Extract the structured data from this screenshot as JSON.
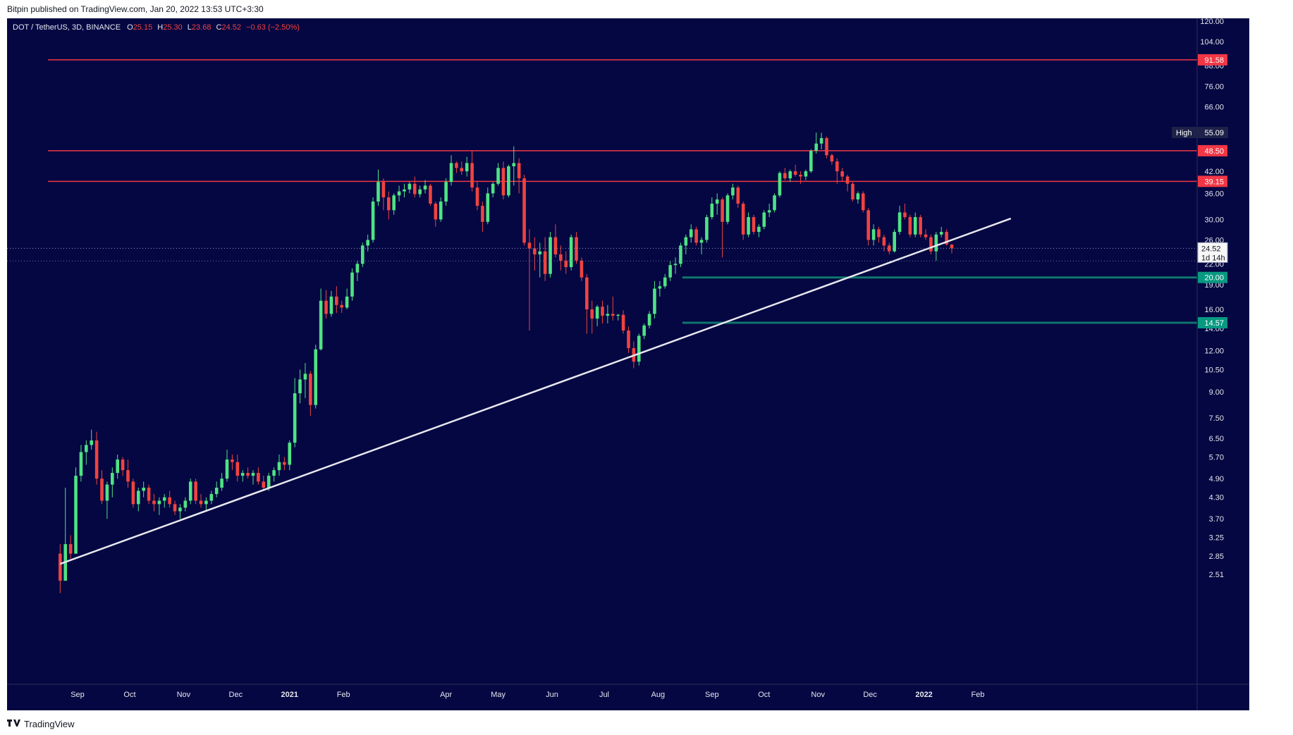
{
  "header": {
    "published": "Bitpin published on TradingView.com, Jan 20, 2022 13:53 UTC+3:30"
  },
  "footer": {
    "brand": "TradingView",
    "logo_icon": "tradingview-logo-icon"
  },
  "colors": {
    "background": "#040742",
    "bull": "#4fe383",
    "bear": "#f0433f",
    "resistance_line": "#f23645",
    "support_line": "#0f766e",
    "trendline": "#e8e8ee",
    "axis_text": "#e6e6ee",
    "price_tag": "#f7f7f7"
  },
  "chart_data": {
    "type": "candlestick",
    "symbol_info": {
      "label": "DOT / TetherUS, 3D, BINANCE",
      "o_label": "O",
      "o": "25.15",
      "h_label": "H",
      "h": "25.30",
      "l_label": "L",
      "l": "23.68",
      "c_label": "C",
      "c": "24.52",
      "change": "−0.63 (−2.50%)"
    },
    "scale": "log",
    "y_ticks": [
      "120.00",
      "104.00",
      "88.00",
      "76.00",
      "66.00",
      "55.00",
      "48.00",
      "42.00",
      "36.00",
      "30.00",
      "26.00",
      "22.00",
      "19.00",
      "16.00",
      "14.00",
      "12.00",
      "10.50",
      "9.00",
      "7.50",
      "6.50",
      "5.70",
      "4.90",
      "4.30",
      "3.70",
      "3.25",
      "2.85",
      "2.51"
    ],
    "x_ticks": [
      {
        "label": "Sep",
        "date": "2020-09-01",
        "bold": false
      },
      {
        "label": "Oct",
        "date": "2020-10-01",
        "bold": false
      },
      {
        "label": "Nov",
        "date": "2020-11-01",
        "bold": false
      },
      {
        "label": "Dec",
        "date": "2020-12-01",
        "bold": false
      },
      {
        "label": "2021",
        "date": "2021-01-01",
        "bold": true
      },
      {
        "label": "Feb",
        "date": "2021-02-01",
        "bold": false
      },
      {
        "label": "Apr",
        "date": "2021-04-01",
        "bold": false
      },
      {
        "label": "May",
        "date": "2021-05-01",
        "bold": false
      },
      {
        "label": "Jun",
        "date": "2021-06-01",
        "bold": false
      },
      {
        "label": "Jul",
        "date": "2021-07-01",
        "bold": false
      },
      {
        "label": "Aug",
        "date": "2021-08-01",
        "bold": false
      },
      {
        "label": "Sep",
        "date": "2021-09-01",
        "bold": false
      },
      {
        "label": "Oct",
        "date": "2021-10-01",
        "bold": false
      },
      {
        "label": "Nov",
        "date": "2021-11-01",
        "bold": false
      },
      {
        "label": "Dec",
        "date": "2021-12-01",
        "bold": false
      },
      {
        "label": "2022",
        "date": "2022-01-01",
        "bold": true
      },
      {
        "label": "Feb",
        "date": "2022-02-01",
        "bold": false
      }
    ],
    "horizontal_levels": [
      {
        "price": 91.58,
        "label": "91.58",
        "color": "#f23645",
        "start_date": "2020-08-15"
      },
      {
        "price": 48.5,
        "label": "48.50",
        "color": "#f23645",
        "start_date": "2020-08-15"
      },
      {
        "price": 39.15,
        "label": "39.15",
        "color": "#f23645",
        "start_date": "2020-08-15"
      },
      {
        "price": 20.0,
        "label": "20.00",
        "color": "#089981",
        "start_date": "2021-08-15"
      },
      {
        "price": 14.57,
        "label": "14.57",
        "color": "#089981",
        "start_date": "2021-08-15"
      }
    ],
    "high_marker": {
      "label": "High",
      "price": 55.09,
      "value": "55.09"
    },
    "last_price": {
      "price": 24.52,
      "label": "24.52",
      "countdown": "1d 14h"
    },
    "trendline": [
      {
        "date": "2020-08-22",
        "price": 2.7
      },
      {
        "date": "2022-02-20",
        "price": 30.2
      }
    ],
    "candles": [
      [
        "2020-08-22",
        2.9,
        3.1,
        2.2,
        2.4
      ],
      [
        "2020-08-25",
        2.4,
        4.6,
        2.4,
        3.1
      ],
      [
        "2020-08-28",
        3.1,
        3.3,
        2.8,
        2.9
      ],
      [
        "2020-08-31",
        2.9,
        5.3,
        2.9,
        5.0
      ],
      [
        "2020-09-03",
        5.0,
        6.2,
        4.8,
        5.9
      ],
      [
        "2020-09-06",
        5.9,
        6.4,
        5.4,
        6.2
      ],
      [
        "2020-09-09",
        6.2,
        6.9,
        6.0,
        6.4
      ],
      [
        "2020-09-12",
        6.4,
        6.8,
        4.7,
        4.9
      ],
      [
        "2020-09-15",
        4.9,
        5.2,
        4.1,
        4.2
      ],
      [
        "2020-09-18",
        4.2,
        4.8,
        3.7,
        4.7
      ],
      [
        "2020-09-21",
        4.7,
        5.3,
        4.3,
        5.1
      ],
      [
        "2020-09-24",
        5.1,
        5.8,
        4.9,
        5.6
      ],
      [
        "2020-09-27",
        5.6,
        5.7,
        5.0,
        5.2
      ],
      [
        "2020-09-30",
        5.2,
        5.6,
        4.6,
        4.8
      ],
      [
        "2020-10-03",
        4.8,
        4.9,
        4.0,
        4.1
      ],
      [
        "2020-10-06",
        4.1,
        4.6,
        3.9,
        4.5
      ],
      [
        "2020-10-09",
        4.5,
        4.8,
        4.3,
        4.6
      ],
      [
        "2020-10-12",
        4.6,
        4.7,
        4.1,
        4.2
      ],
      [
        "2020-10-15",
        4.2,
        4.4,
        3.9,
        4.1
      ],
      [
        "2020-10-18",
        4.1,
        4.3,
        3.8,
        4.2
      ],
      [
        "2020-10-21",
        4.2,
        4.4,
        4.0,
        4.3
      ],
      [
        "2020-10-24",
        4.3,
        4.5,
        4.0,
        4.1
      ],
      [
        "2020-10-27",
        4.1,
        4.2,
        3.8,
        3.9
      ],
      [
        "2020-10-30",
        3.9,
        4.1,
        3.7,
        4.0
      ],
      [
        "2020-11-02",
        4.0,
        4.3,
        3.9,
        4.2
      ],
      [
        "2020-11-05",
        4.2,
        4.9,
        4.1,
        4.8
      ],
      [
        "2020-11-08",
        4.8,
        4.9,
        4.1,
        4.2
      ],
      [
        "2020-11-11",
        4.2,
        4.4,
        4.0,
        4.1
      ],
      [
        "2020-11-14",
        4.1,
        4.3,
        3.9,
        4.2
      ],
      [
        "2020-11-17",
        4.2,
        4.5,
        4.1,
        4.4
      ],
      [
        "2020-11-20",
        4.4,
        4.8,
        4.3,
        4.6
      ],
      [
        "2020-11-23",
        4.6,
        5.1,
        4.5,
        4.9
      ],
      [
        "2020-11-26",
        4.9,
        6.0,
        4.8,
        5.6
      ],
      [
        "2020-11-29",
        5.6,
        5.8,
        5.2,
        5.5
      ],
      [
        "2020-12-02",
        5.5,
        5.8,
        4.8,
        5.0
      ],
      [
        "2020-12-05",
        5.0,
        5.2,
        4.8,
        5.1
      ],
      [
        "2020-12-08",
        5.1,
        5.3,
        4.9,
        5.0
      ],
      [
        "2020-12-11",
        5.0,
        5.2,
        4.7,
        5.1
      ],
      [
        "2020-12-14",
        5.1,
        5.3,
        4.7,
        4.8
      ],
      [
        "2020-12-17",
        4.8,
        5.0,
        4.5,
        4.6
      ],
      [
        "2020-12-20",
        4.6,
        5.1,
        4.5,
        5.0
      ],
      [
        "2020-12-23",
        5.0,
        5.3,
        4.8,
        5.2
      ],
      [
        "2020-12-26",
        5.2,
        5.8,
        5.0,
        5.5
      ],
      [
        "2020-12-29",
        5.5,
        5.7,
        5.2,
        5.4
      ],
      [
        "2021-01-01",
        5.4,
        6.4,
        5.2,
        6.3
      ],
      [
        "2021-01-04",
        6.3,
        9.9,
        6.1,
        8.9
      ],
      [
        "2021-01-07",
        8.9,
        10.5,
        8.3,
        9.8
      ],
      [
        "2021-01-10",
        9.8,
        11.0,
        8.6,
        10.2
      ],
      [
        "2021-01-13",
        10.2,
        10.4,
        7.6,
        8.2
      ],
      [
        "2021-01-16",
        8.2,
        12.5,
        8.0,
        12.1
      ],
      [
        "2021-01-19",
        12.1,
        18.5,
        12.0,
        17.0
      ],
      [
        "2021-01-22",
        17.0,
        18.3,
        15.0,
        15.5
      ],
      [
        "2021-01-25",
        15.5,
        18.2,
        15.2,
        17.5
      ],
      [
        "2021-01-28",
        17.5,
        18.8,
        15.6,
        16.5
      ],
      [
        "2021-01-31",
        16.5,
        17.0,
        15.6,
        16.2
      ],
      [
        "2021-02-03",
        16.2,
        18.5,
        16.0,
        17.5
      ],
      [
        "2021-02-06",
        17.5,
        21.3,
        17.0,
        20.7
      ],
      [
        "2021-02-09",
        20.7,
        22.5,
        19.5,
        22.0
      ],
      [
        "2021-02-12",
        22.0,
        25.5,
        21.5,
        25.0
      ],
      [
        "2021-02-15",
        25.0,
        27.0,
        24.0,
        26.0
      ],
      [
        "2021-02-18",
        26.0,
        35.0,
        25.5,
        34.0
      ],
      [
        "2021-02-21",
        34.0,
        42.5,
        33.0,
        39.0
      ],
      [
        "2021-02-24",
        39.0,
        40.0,
        32.0,
        35.0
      ],
      [
        "2021-02-27",
        35.0,
        36.5,
        30.0,
        32.0
      ],
      [
        "2021-03-02",
        32.0,
        36.0,
        31.0,
        35.5
      ],
      [
        "2021-03-05",
        35.5,
        38.0,
        34.0,
        36.5
      ],
      [
        "2021-03-08",
        36.5,
        38.5,
        35.0,
        37.0
      ],
      [
        "2021-03-11",
        37.0,
        39.0,
        36.0,
        38.5
      ],
      [
        "2021-03-14",
        38.5,
        40.5,
        35.0,
        35.8
      ],
      [
        "2021-03-17",
        35.8,
        38.0,
        35.0,
        37.0
      ],
      [
        "2021-03-20",
        37.0,
        39.5,
        36.0,
        38.0
      ],
      [
        "2021-03-23",
        38.0,
        38.5,
        33.0,
        33.5
      ],
      [
        "2021-03-26",
        33.5,
        34.0,
        28.5,
        30.0
      ],
      [
        "2021-03-29",
        30.0,
        35.0,
        29.5,
        34.0
      ],
      [
        "2021-04-01",
        34.0,
        40.0,
        33.0,
        39.0
      ],
      [
        "2021-04-04",
        39.0,
        47.0,
        38.0,
        44.5
      ],
      [
        "2021-04-07",
        44.5,
        45.0,
        41.5,
        43.0
      ],
      [
        "2021-04-10",
        43.0,
        45.0,
        41.0,
        42.0
      ],
      [
        "2021-04-13",
        42.0,
        46.5,
        40.5,
        44.5
      ],
      [
        "2021-04-16",
        44.5,
        48.5,
        36.5,
        37.5
      ],
      [
        "2021-04-19",
        37.5,
        39.0,
        32.0,
        33.0
      ],
      [
        "2021-04-22",
        33.0,
        34.0,
        27.5,
        29.5
      ],
      [
        "2021-04-25",
        29.5,
        37.5,
        29.0,
        36.0
      ],
      [
        "2021-04-28",
        36.0,
        39.0,
        35.0,
        38.5
      ],
      [
        "2021-05-01",
        38.5,
        44.5,
        38.0,
        43.0
      ],
      [
        "2021-05-04",
        43.0,
        45.0,
        34.5,
        35.5
      ],
      [
        "2021-05-07",
        35.5,
        44.0,
        35.0,
        43.5
      ],
      [
        "2021-05-10",
        43.5,
        50.0,
        38.0,
        44.5
      ],
      [
        "2021-05-13",
        44.5,
        46.0,
        36.0,
        40.0
      ],
      [
        "2021-05-16",
        40.0,
        41.0,
        25.0,
        25.5
      ],
      [
        "2021-05-19",
        25.5,
        28.0,
        13.8,
        24.5
      ],
      [
        "2021-05-22",
        24.5,
        26.5,
        21.0,
        23.5
      ],
      [
        "2021-05-25",
        23.5,
        25.5,
        20.0,
        24.0
      ],
      [
        "2021-05-28",
        24.0,
        26.5,
        19.5,
        20.5
      ],
      [
        "2021-05-31",
        20.5,
        27.5,
        20.0,
        26.5
      ],
      [
        "2021-06-03",
        26.5,
        29.0,
        23.0,
        23.5
      ],
      [
        "2021-06-06",
        23.5,
        25.0,
        21.0,
        22.5
      ],
      [
        "2021-06-09",
        22.5,
        24.0,
        20.5,
        21.5
      ],
      [
        "2021-06-12",
        21.5,
        27.0,
        21.0,
        26.5
      ],
      [
        "2021-06-15",
        26.5,
        27.5,
        22.0,
        22.5
      ],
      [
        "2021-06-18",
        22.5,
        23.0,
        19.5,
        20.0
      ],
      [
        "2021-06-21",
        20.0,
        20.5,
        13.5,
        16.0
      ],
      [
        "2021-06-24",
        16.0,
        17.0,
        13.5,
        15.0
      ],
      [
        "2021-06-27",
        15.0,
        16.5,
        14.2,
        16.3
      ],
      [
        "2021-06-30",
        16.3,
        17.0,
        14.5,
        15.3
      ],
      [
        "2021-07-03",
        15.3,
        16.5,
        14.5,
        15.5
      ],
      [
        "2021-07-06",
        15.5,
        17.5,
        14.8,
        15.3
      ],
      [
        "2021-07-09",
        15.3,
        15.5,
        14.8,
        15.4
      ],
      [
        "2021-07-12",
        15.4,
        15.9,
        13.5,
        13.8
      ],
      [
        "2021-07-15",
        13.8,
        14.2,
        11.8,
        12.2
      ],
      [
        "2021-07-18",
        12.2,
        12.8,
        10.6,
        11.1
      ],
      [
        "2021-07-21",
        11.1,
        13.5,
        10.8,
        13.3
      ],
      [
        "2021-07-24",
        13.3,
        14.5,
        13.0,
        14.3
      ],
      [
        "2021-07-27",
        14.3,
        15.8,
        14.0,
        15.5
      ],
      [
        "2021-07-30",
        15.5,
        19.5,
        15.0,
        18.5
      ],
      [
        "2021-08-02",
        18.5,
        19.5,
        17.5,
        18.8
      ],
      [
        "2021-08-05",
        18.8,
        20.5,
        18.5,
        20.0
      ],
      [
        "2021-08-08",
        20.0,
        22.5,
        19.5,
        21.8
      ],
      [
        "2021-08-11",
        21.8,
        23.0,
        20.5,
        22.0
      ],
      [
        "2021-08-14",
        22.0,
        25.5,
        21.5,
        25.0
      ],
      [
        "2021-08-17",
        25.0,
        27.0,
        23.5,
        26.5
      ],
      [
        "2021-08-20",
        26.5,
        29.0,
        25.5,
        28.0
      ],
      [
        "2021-08-23",
        28.0,
        28.5,
        25.0,
        25.5
      ],
      [
        "2021-08-26",
        25.5,
        26.5,
        23.5,
        26.0
      ],
      [
        "2021-08-29",
        26.0,
        31.0,
        25.5,
        30.5
      ],
      [
        "2021-09-01",
        30.5,
        35.0,
        30.0,
        33.5
      ],
      [
        "2021-09-04",
        33.5,
        36.0,
        31.0,
        34.5
      ],
      [
        "2021-09-07",
        34.5,
        35.0,
        23.0,
        29.5
      ],
      [
        "2021-09-10",
        29.5,
        36.0,
        29.0,
        35.5
      ],
      [
        "2021-09-13",
        35.5,
        38.5,
        34.5,
        37.5
      ],
      [
        "2021-09-16",
        37.5,
        38.0,
        32.5,
        33.5
      ],
      [
        "2021-09-19",
        33.5,
        34.0,
        26.0,
        27.0
      ],
      [
        "2021-09-22",
        27.0,
        31.5,
        26.5,
        30.5
      ],
      [
        "2021-09-25",
        30.5,
        31.0,
        27.0,
        27.5
      ],
      [
        "2021-09-28",
        27.5,
        29.0,
        26.5,
        28.5
      ],
      [
        "2021-10-01",
        28.5,
        32.0,
        28.0,
        31.5
      ],
      [
        "2021-10-04",
        31.5,
        33.5,
        30.5,
        32.0
      ],
      [
        "2021-10-07",
        32.0,
        36.0,
        31.5,
        35.5
      ],
      [
        "2021-10-10",
        35.5,
        42.0,
        35.0,
        41.5
      ],
      [
        "2021-10-13",
        41.5,
        43.0,
        39.5,
        40.0
      ],
      [
        "2021-10-16",
        40.0,
        42.5,
        39.0,
        42.0
      ],
      [
        "2021-10-19",
        42.0,
        44.0,
        40.5,
        41.0
      ],
      [
        "2021-10-22",
        41.0,
        42.0,
        38.5,
        40.5
      ],
      [
        "2021-10-25",
        40.5,
        42.5,
        39.5,
        42.0
      ],
      [
        "2021-10-28",
        42.0,
        49.0,
        41.5,
        48.5
      ],
      [
        "2021-10-31",
        48.5,
        55.09,
        47.5,
        51.0
      ],
      [
        "2021-11-03",
        51.0,
        55.0,
        49.0,
        53.0
      ],
      [
        "2021-11-06",
        53.0,
        53.5,
        46.0,
        47.0
      ],
      [
        "2021-11-09",
        47.0,
        47.5,
        44.0,
        45.0
      ],
      [
        "2021-11-12",
        45.0,
        46.0,
        38.5,
        42.0
      ],
      [
        "2021-11-15",
        42.0,
        43.0,
        39.0,
        40.5
      ],
      [
        "2021-11-18",
        40.5,
        41.0,
        36.5,
        38.5
      ],
      [
        "2021-11-21",
        38.5,
        39.0,
        34.0,
        34.5
      ],
      [
        "2021-11-24",
        34.5,
        36.5,
        33.5,
        36.0
      ],
      [
        "2021-11-27",
        36.0,
        36.5,
        31.5,
        32.0
      ],
      [
        "2021-11-30",
        32.0,
        32.5,
        25.0,
        26.0
      ],
      [
        "2021-12-03",
        26.0,
        29.0,
        25.0,
        28.0
      ],
      [
        "2021-12-06",
        28.0,
        28.5,
        25.5,
        26.5
      ],
      [
        "2021-12-09",
        26.5,
        27.0,
        24.0,
        25.0
      ],
      [
        "2021-12-12",
        25.0,
        25.5,
        23.5,
        24.0
      ],
      [
        "2021-12-15",
        24.0,
        28.0,
        23.8,
        27.5
      ],
      [
        "2021-12-18",
        27.5,
        33.0,
        27.0,
        31.5
      ],
      [
        "2021-12-21",
        31.5,
        33.5,
        30.0,
        30.5
      ],
      [
        "2021-12-24",
        30.5,
        31.0,
        26.5,
        27.0
      ],
      [
        "2021-12-27",
        27.0,
        31.5,
        26.5,
        30.5
      ],
      [
        "2021-12-30",
        30.5,
        31.0,
        26.5,
        27.0
      ],
      [
        "2022-01-02",
        27.0,
        28.0,
        26.0,
        26.5
      ],
      [
        "2022-01-05",
        26.5,
        27.0,
        23.5,
        24.0
      ],
      [
        "2022-01-08",
        24.0,
        27.5,
        22.5,
        27.0
      ],
      [
        "2022-01-11",
        27.0,
        28.5,
        26.5,
        27.5
      ],
      [
        "2022-01-14",
        27.5,
        28.0,
        25.0,
        25.2
      ],
      [
        "2022-01-17",
        25.15,
        25.3,
        23.68,
        24.52
      ]
    ]
  }
}
